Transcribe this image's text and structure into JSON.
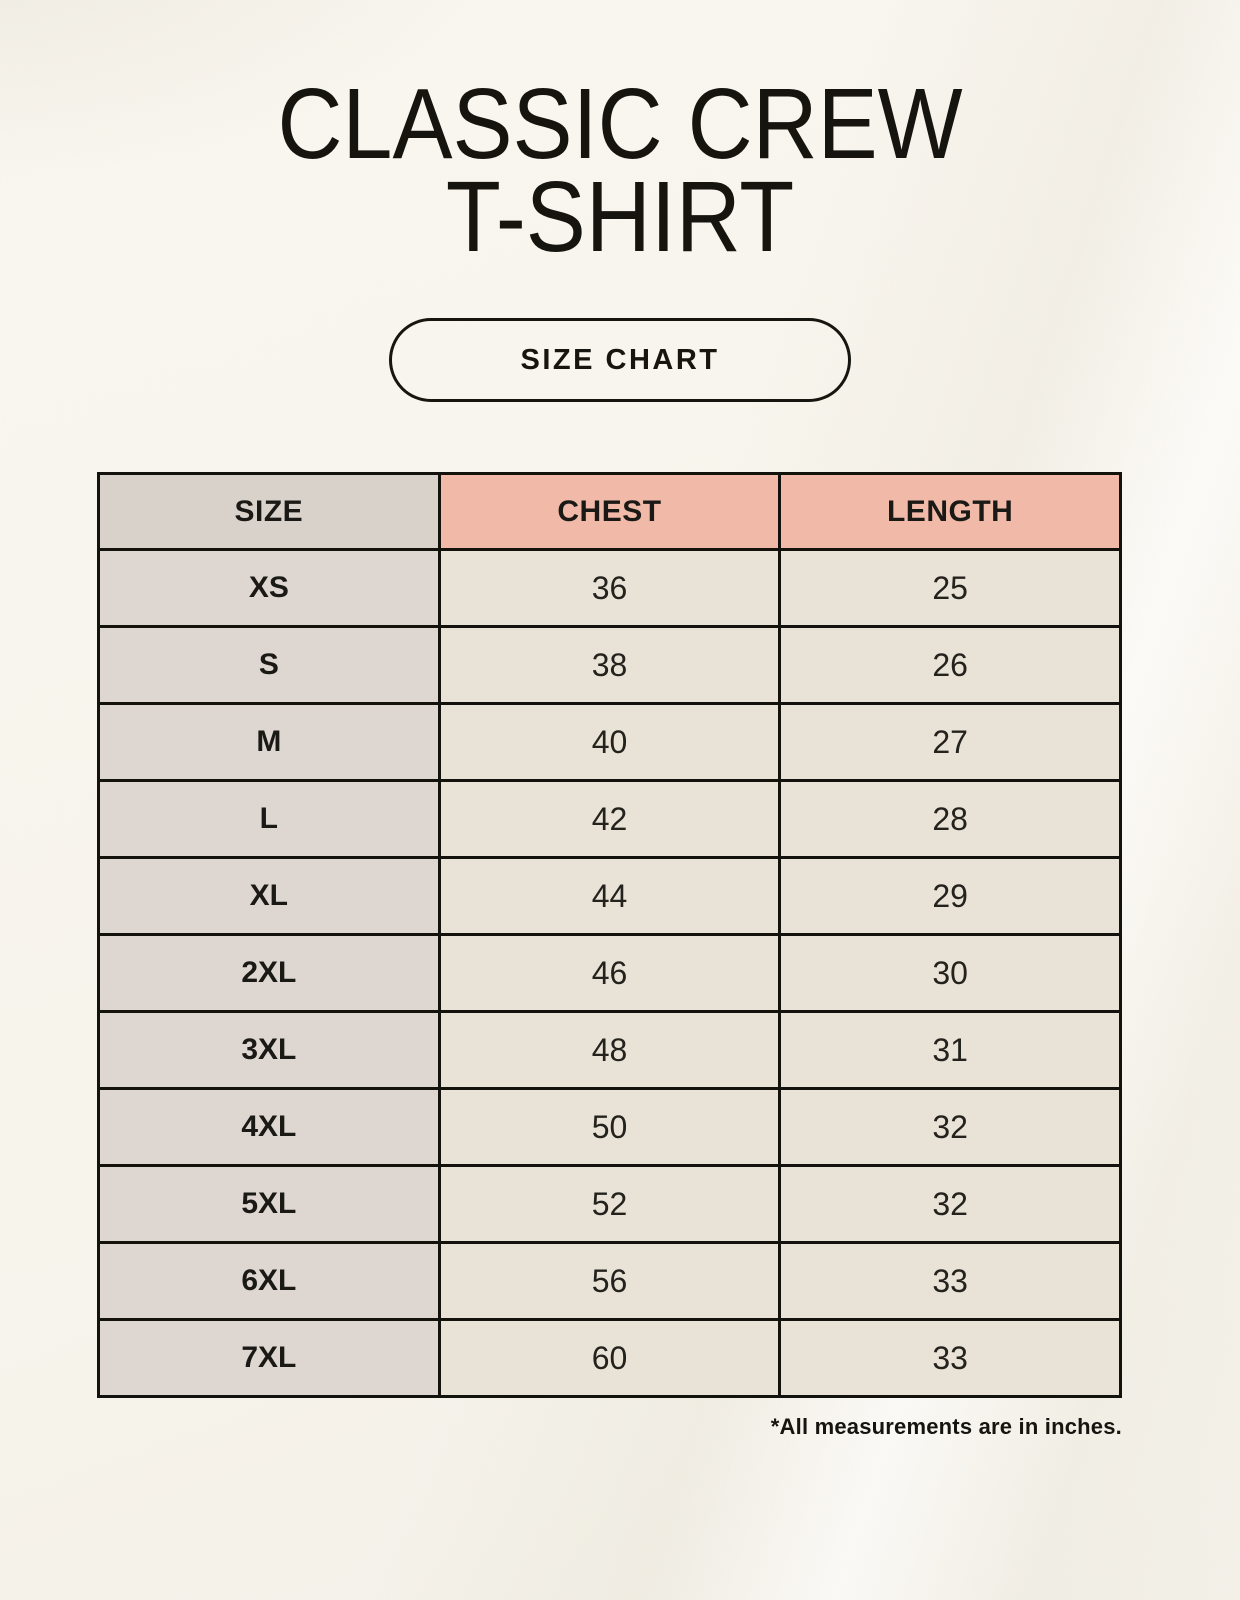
{
  "header": {
    "title_line1": "CLASSIC CREW",
    "title_line2": "T-SHIRT",
    "size_chart_label": "SIZE CHART"
  },
  "chart_data": {
    "type": "table",
    "title": "CLASSIC CREW T-SHIRT",
    "columns": [
      "SIZE",
      "CHEST",
      "LENGTH"
    ],
    "rows": [
      [
        "XS",
        "36",
        "25"
      ],
      [
        "S",
        "38",
        "26"
      ],
      [
        "M",
        "40",
        "27"
      ],
      [
        "L",
        "42",
        "28"
      ],
      [
        "XL",
        "44",
        "29"
      ],
      [
        "2XL",
        "46",
        "30"
      ],
      [
        "3XL",
        "48",
        "31"
      ],
      [
        "4XL",
        "50",
        "32"
      ],
      [
        "5XL",
        "52",
        "32"
      ],
      [
        "6XL",
        "56",
        "33"
      ],
      [
        "7XL",
        "60",
        "33"
      ]
    ],
    "footnote": "*All measurements are in inches.",
    "units": "inches"
  },
  "colors": {
    "background": "#f7f4ec",
    "header_salmon": "#f0b9a8",
    "size_column_taupe": "#ded7d1",
    "size_header_taupe": "#d9d2cb",
    "data_cell_cream": "#e9e2d7",
    "table_border": "#14120d",
    "text": "#16140f"
  }
}
